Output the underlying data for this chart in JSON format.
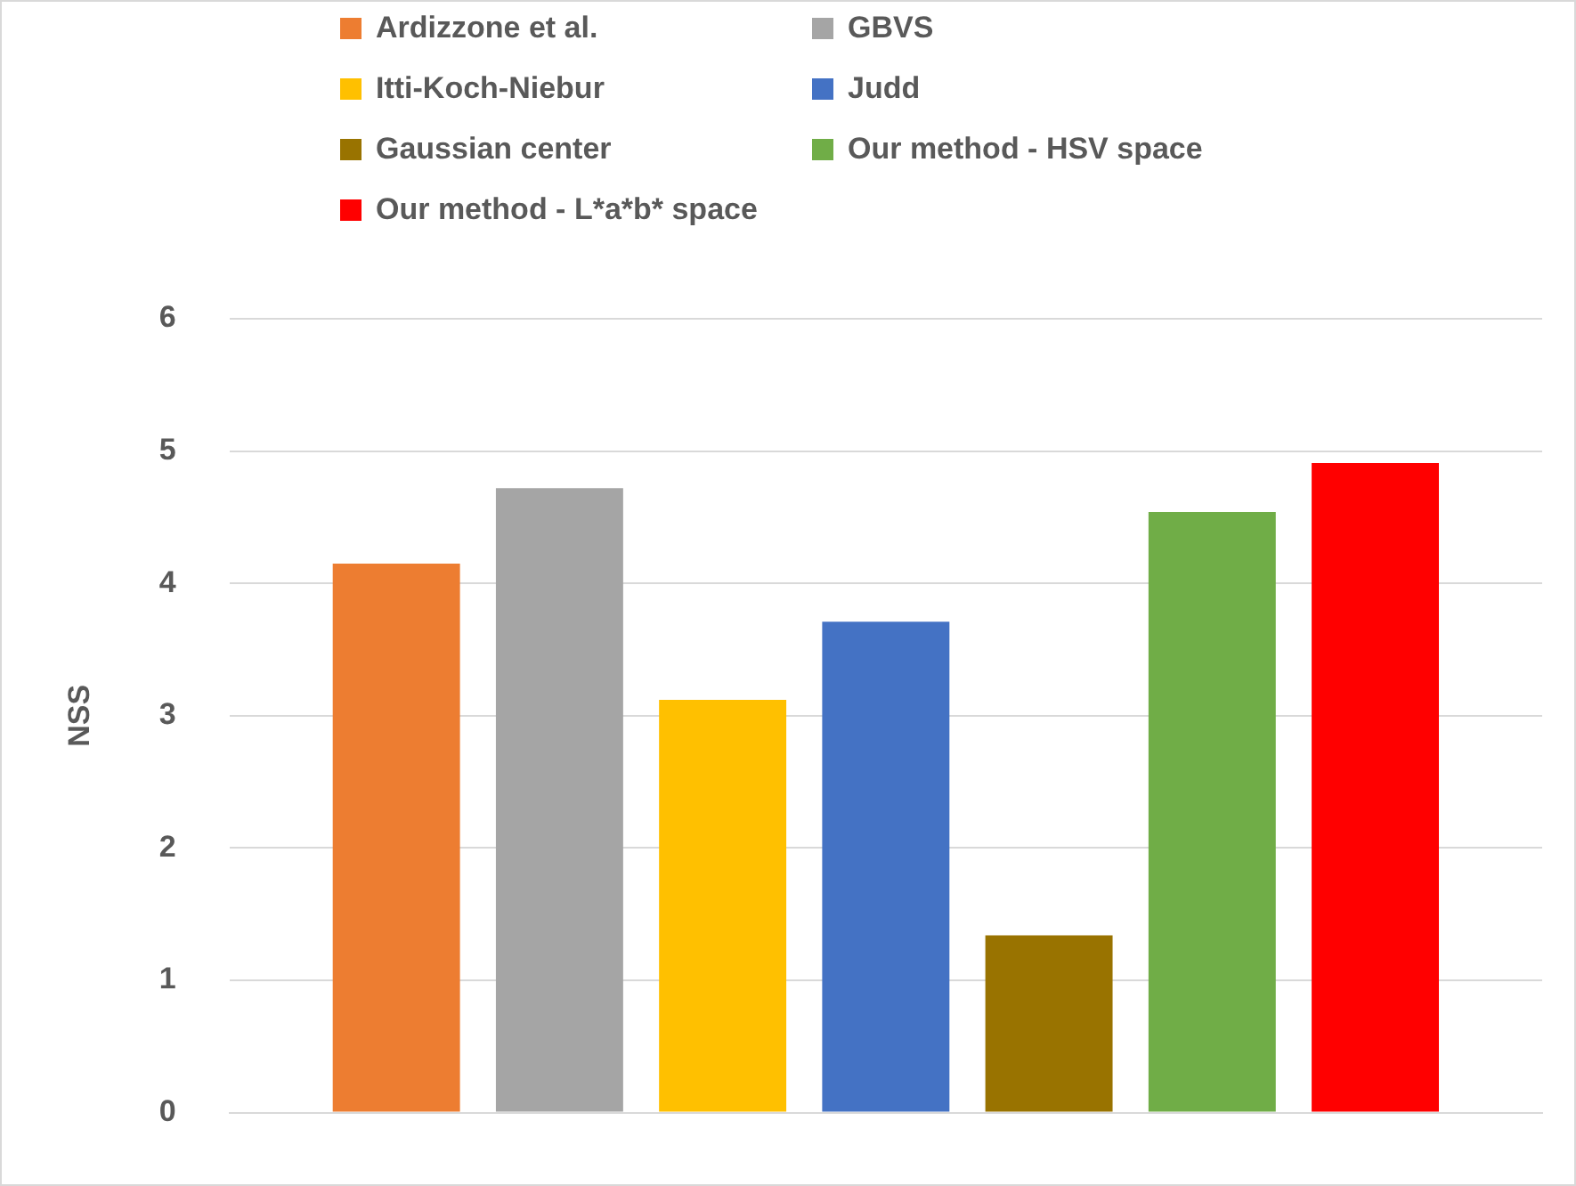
{
  "chart_data": {
    "type": "bar",
    "ylabel": "NSS",
    "categories": [
      null
    ],
    "series": [
      {
        "name": "Ardizzone et al.",
        "color": "#ed7d31",
        "values": [
          4.15
        ]
      },
      {
        "name": "GBVS",
        "color": "#a5a5a5",
        "values": [
          4.72
        ]
      },
      {
        "name": "Itti-Koch-Niebur",
        "color": "#ffc000",
        "values": [
          3.12
        ]
      },
      {
        "name": "Judd",
        "color": "#4472c4",
        "values": [
          3.71
        ]
      },
      {
        "name": "Gaussian center",
        "color": "#997300",
        "values": [
          1.34
        ]
      },
      {
        "name": "Our method - HSV space",
        "color": "#70ad47",
        "values": [
          4.54
        ]
      },
      {
        "name": "Our method - L*a*b* space",
        "color": "#ff0000",
        "values": [
          4.91
        ]
      }
    ],
    "ylim": [
      0,
      6
    ],
    "yticks": [
      0,
      1,
      2,
      3,
      4,
      5,
      6
    ],
    "grid": "y",
    "legend": "top"
  }
}
